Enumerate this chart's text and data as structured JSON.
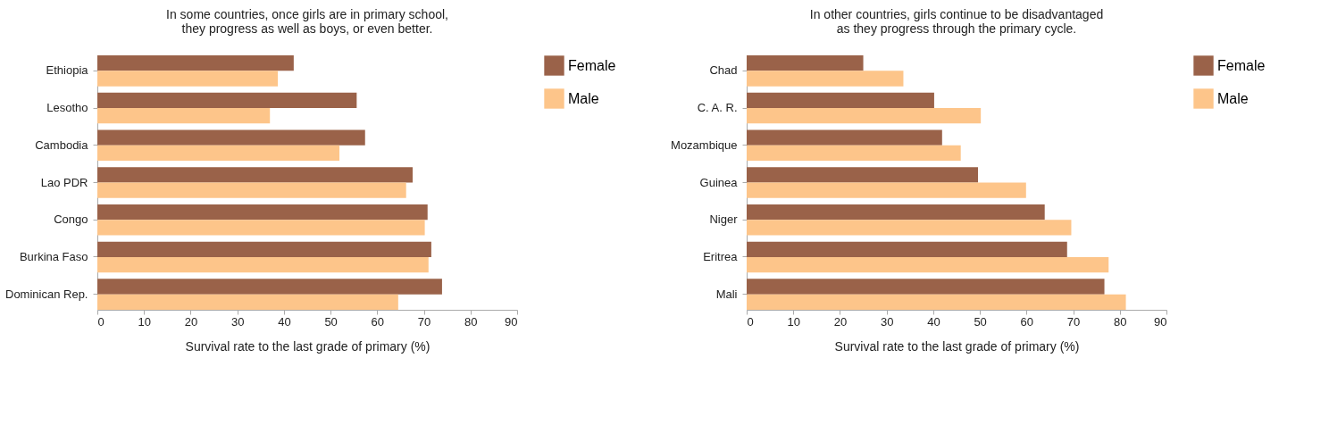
{
  "chart_data": [
    {
      "type": "bar",
      "orientation": "horizontal",
      "title": [
        "In some countries, once girls are in primary school,",
        "they progress as well as boys, or even better."
      ],
      "xlabel": "Survival rate to the last grade of primary (%)",
      "categories": [
        "Ethiopia",
        "Lesotho",
        "Cambodia",
        "Lao PDR",
        "Congo",
        "Burkina Faso",
        "Dominican Rep."
      ],
      "series": [
        {
          "name": "Female",
          "color": "#9a6249",
          "values": [
            42.1,
            55.6,
            57.4,
            67.6,
            70.8,
            71.6,
            73.9
          ]
        },
        {
          "name": "Male",
          "color": "#fdc58a",
          "values": [
            38.7,
            37.0,
            51.9,
            66.2,
            70.2,
            71.0,
            64.5
          ]
        }
      ],
      "xlim": [
        0,
        90
      ],
      "xticks": [
        0,
        10,
        20,
        30,
        40,
        50,
        60,
        70,
        80,
        90
      ],
      "legend": "top right",
      "grid": false
    },
    {
      "type": "bar",
      "orientation": "horizontal",
      "title": [
        "In other countries, girls continue to be disadvantaged",
        "as they progress through the primary cycle."
      ],
      "xlabel": "Survival rate to the last grade of primary (%)",
      "categories": [
        "Chad",
        "C. A. R.",
        "Mozambique",
        "Guinea",
        "Niger",
        "Eritrea",
        "Mali"
      ],
      "series": [
        {
          "name": "Female",
          "color": "#9a6249",
          "values": [
            25.0,
            40.2,
            41.9,
            49.6,
            63.9,
            68.7,
            76.7
          ]
        },
        {
          "name": "Male",
          "color": "#fdc58a",
          "values": [
            33.6,
            50.2,
            45.9,
            59.9,
            69.6,
            77.6,
            81.3
          ]
        }
      ],
      "xlim": [
        0,
        90
      ],
      "xticks": [
        0,
        10,
        20,
        30,
        40,
        50,
        60,
        70,
        80,
        90
      ],
      "legend": "top right",
      "grid": false
    }
  ]
}
